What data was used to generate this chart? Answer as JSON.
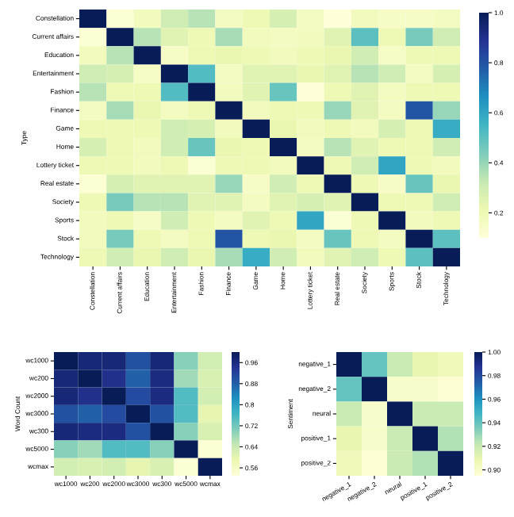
{
  "chart_data": [
    {
      "type": "heatmap",
      "ylabel": "Type",
      "categories": [
        "Constellation",
        "Current affairs",
        "Education",
        "Entertainment",
        "Fashion",
        "Finance",
        "Game",
        "Home",
        "Lottery ticket",
        "Real estate",
        "Society",
        "Sports",
        "Stock",
        "Technology"
      ],
      "y_categories": [
        "Constellation",
        "Current affairs",
        "Education",
        "Entertainment",
        "Fashion",
        "Finance",
        "Game",
        "Home",
        "Lottery ticket",
        "Real estate",
        "Society",
        "Sports",
        "Stock",
        "Technology"
      ],
      "cells": [
        [
          1,
          0.12,
          0.18,
          0.3,
          0.35,
          0.17,
          0.2,
          0.28,
          0.17,
          0.1,
          0.18,
          0.15,
          0.15,
          0.17
        ],
        [
          0.12,
          1,
          0.35,
          0.25,
          0.2,
          0.38,
          0.18,
          0.17,
          0.18,
          0.25,
          0.5,
          0.2,
          0.45,
          0.3
        ],
        [
          0.18,
          0.35,
          1,
          0.15,
          0.2,
          0.22,
          0.2,
          0.18,
          0.2,
          0.22,
          0.3,
          0.15,
          0.2,
          0.2
        ],
        [
          0.3,
          0.28,
          0.15,
          1,
          0.52,
          0.17,
          0.25,
          0.25,
          0.22,
          0.25,
          0.35,
          0.3,
          0.17,
          0.28
        ],
        [
          0.35,
          0.2,
          0.2,
          0.52,
          1,
          0.18,
          0.25,
          0.48,
          0.1,
          0.2,
          0.25,
          0.17,
          0.2,
          0.2
        ],
        [
          0.17,
          0.38,
          0.22,
          0.17,
          0.2,
          1,
          0.18,
          0.2,
          0.2,
          0.4,
          0.25,
          0.17,
          0.8,
          0.4
        ],
        [
          0.2,
          0.2,
          0.2,
          0.3,
          0.28,
          0.18,
          1,
          0.22,
          0.18,
          0.2,
          0.18,
          0.28,
          0.2,
          0.58
        ],
        [
          0.28,
          0.2,
          0.18,
          0.3,
          0.48,
          0.22,
          0.2,
          1,
          0.17,
          0.35,
          0.25,
          0.2,
          0.2,
          0.3
        ],
        [
          0.2,
          0.2,
          0.18,
          0.2,
          0.12,
          0.2,
          0.2,
          0.18,
          1,
          0.2,
          0.3,
          0.6,
          0.2,
          0.18
        ],
        [
          0.12,
          0.28,
          0.25,
          0.25,
          0.25,
          0.4,
          0.15,
          0.3,
          0.2,
          1,
          0.2,
          0.15,
          0.48,
          0.22
        ],
        [
          0.2,
          0.45,
          0.35,
          0.35,
          0.25,
          0.25,
          0.17,
          0.25,
          0.28,
          0.25,
          1,
          0.2,
          0.2,
          0.3
        ],
        [
          0.18,
          0.2,
          0.15,
          0.3,
          0.2,
          0.17,
          0.25,
          0.2,
          0.6,
          0.12,
          0.2,
          1,
          0.18,
          0.2
        ],
        [
          0.18,
          0.45,
          0.2,
          0.17,
          0.2,
          0.8,
          0.2,
          0.22,
          0.17,
          0.48,
          0.2,
          0.17,
          1,
          0.5
        ],
        [
          0.2,
          0.3,
          0.22,
          0.3,
          0.22,
          0.38,
          0.58,
          0.3,
          0.18,
          0.25,
          0.3,
          0.2,
          0.5,
          1
        ]
      ],
      "clim": [
        0.1,
        1.0
      ],
      "cticks": [
        0.2,
        0.4,
        0.6,
        0.8,
        {
          "value": 1,
          "label": "1.0"
        }
      ]
    },
    {
      "type": "heatmap",
      "ylabel": "Word Count",
      "categories": [
        "wc1000",
        "wc200",
        "wc2000",
        "wc3000",
        "wc300",
        "wc5000",
        "wcmax"
      ],
      "y_categories": [
        "wc1000",
        "wc200",
        "wc2000",
        "wc3000",
        "wc300",
        "wc5000",
        "wcmax"
      ],
      "cells": [
        [
          1,
          0.97,
          0.97,
          0.9,
          0.97,
          0.7,
          0.63
        ],
        [
          0.97,
          1,
          0.95,
          0.88,
          0.96,
          0.68,
          0.62
        ],
        [
          0.97,
          0.95,
          1,
          0.91,
          0.96,
          0.75,
          0.63
        ],
        [
          0.9,
          0.88,
          0.91,
          1,
          0.9,
          0.75,
          0.6
        ],
        [
          0.97,
          0.96,
          0.96,
          0.9,
          1,
          0.7,
          0.62
        ],
        [
          0.7,
          0.68,
          0.75,
          0.75,
          0.7,
          1,
          0.54
        ],
        [
          0.63,
          0.62,
          0.63,
          0.6,
          0.62,
          0.54,
          1
        ]
      ],
      "clim": [
        0.53,
        1.0
      ],
      "cticks": [
        0.56,
        0.64,
        0.72,
        0.8,
        0.88,
        0.96
      ]
    },
    {
      "type": "heatmap",
      "ylabel": "Sentiment",
      "categories": [
        "negative_1",
        "negative_2",
        "neural",
        "positive_1",
        "positive_2"
      ],
      "y_categories": [
        "negative_1",
        "negative_2",
        "neural",
        "positive_1",
        "positive_2"
      ],
      "cells": [
        [
          1,
          0.94,
          0.92,
          0.91,
          0.905
        ],
        [
          0.94,
          1,
          0.9,
          0.9,
          0.897
        ],
        [
          0.92,
          0.9,
          1,
          0.92,
          0.92
        ],
        [
          0.91,
          0.9,
          0.92,
          1,
          0.925
        ],
        [
          0.905,
          0.897,
          0.92,
          0.925,
          1
        ]
      ],
      "clim": [
        0.895,
        1.0
      ],
      "cticks": [
        {
          "value": 0.9,
          "label": "0.90"
        },
        {
          "value": 0.92,
          "label": "0.92"
        },
        {
          "value": 0.94,
          "label": "0.94"
        },
        {
          "value": 0.96,
          "label": "0.96"
        },
        {
          "value": 0.98,
          "label": "0.98"
        },
        {
          "value": 1.0,
          "label": "1.00"
        }
      ]
    }
  ]
}
